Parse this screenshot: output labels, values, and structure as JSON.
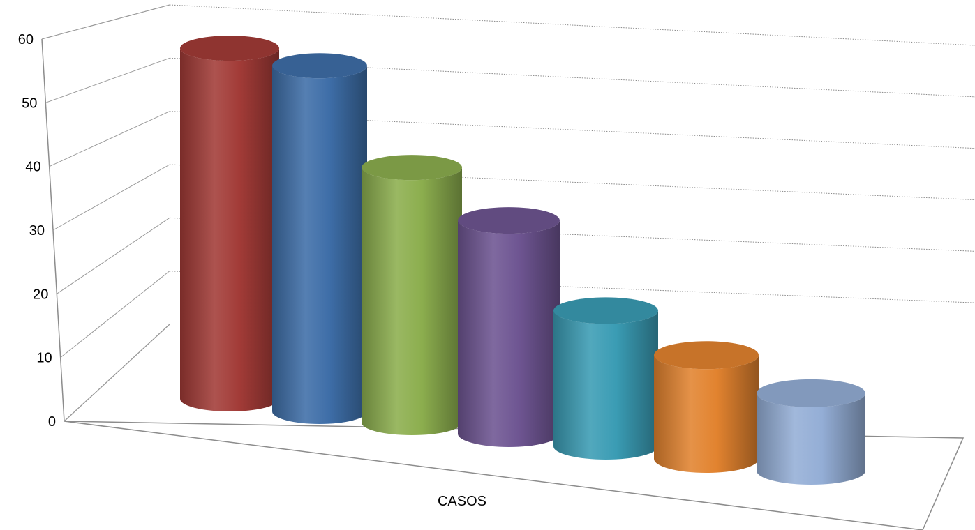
{
  "chart_data": {
    "type": "bar",
    "style": "3d-cylinder",
    "categories": [
      "CASOS"
    ],
    "series": [
      {
        "values": [
          56
        ],
        "color": "#A23B37"
      },
      {
        "values": [
          54
        ],
        "color": "#3E6EA8"
      },
      {
        "values": [
          39
        ],
        "color": "#8CAE4E"
      },
      {
        "values": [
          32
        ],
        "color": "#6E5592"
      },
      {
        "values": [
          20
        ],
        "color": "#3A9CB4"
      },
      {
        "values": [
          15
        ],
        "color": "#E2832F"
      },
      {
        "values": [
          11
        ],
        "color": "#94AED6"
      }
    ],
    "ylim": [
      0,
      60
    ],
    "yticks": [
      "0",
      "10",
      "20",
      "30",
      "40",
      "50",
      "60"
    ],
    "xlabel": "",
    "ylabel": "",
    "grid": true,
    "legend": "none"
  }
}
